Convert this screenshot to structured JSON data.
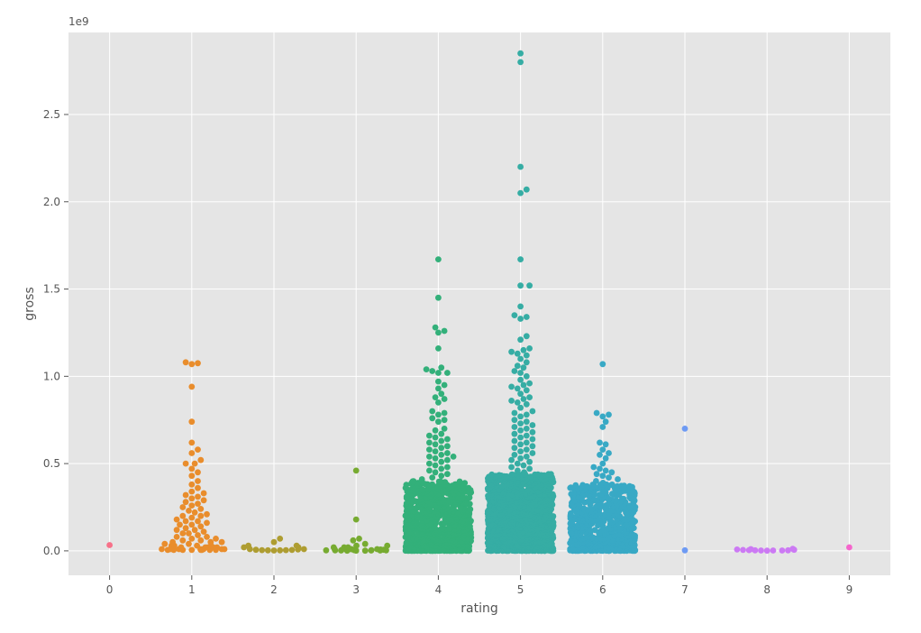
{
  "chart_data": {
    "type": "scatter",
    "style": "swarm",
    "xlabel": "rating",
    "ylabel": "gross",
    "y_offset_label": "1e9",
    "y_scale": 1000000000,
    "ylim": [
      -0.14,
      2.97
    ],
    "xlim": [
      -0.5,
      9.5
    ],
    "grid": true,
    "background": "#e5e5e5",
    "grid_color": "#ffffff",
    "categories": [
      "0",
      "1",
      "2",
      "3",
      "4",
      "5",
      "6",
      "7",
      "8",
      "9"
    ],
    "y_ticks": [
      0.0,
      0.5,
      1.0,
      1.5,
      2.0,
      2.5
    ],
    "y_tick_labels": [
      "0.0",
      "0.5",
      "1.0",
      "1.5",
      "2.0",
      "2.5"
    ],
    "series": [
      {
        "category": "0",
        "color": "#f77189",
        "points": [
          0.033
        ]
      },
      {
        "category": "1",
        "color": "#e98d2c",
        "points": [
          1.08,
          1.075,
          1.07,
          0.94,
          0.74,
          0.62,
          0.58,
          0.56,
          0.52,
          0.5,
          0.5,
          0.47,
          0.45,
          0.43,
          0.4,
          0.38,
          0.36,
          0.34,
          0.33,
          0.32,
          0.31,
          0.3,
          0.29,
          0.28,
          0.27,
          0.26,
          0.25,
          0.24,
          0.23,
          0.22,
          0.21,
          0.2,
          0.2,
          0.19,
          0.18,
          0.17,
          0.17,
          0.16,
          0.15,
          0.15,
          0.14,
          0.13,
          0.12,
          0.12,
          0.11,
          0.1,
          0.1,
          0.09,
          0.08,
          0.08,
          0.07,
          0.07,
          0.06,
          0.06,
          0.05,
          0.05,
          0.05,
          0.04,
          0.04,
          0.03,
          0.03,
          0.03,
          0.03,
          0.02,
          0.02,
          0.02,
          0.02,
          0.02,
          0.01,
          0.01,
          0.01,
          0.01,
          0.01,
          0.01,
          0.01,
          0.01,
          0.005,
          0.005,
          0.005,
          0.005,
          0.005,
          0.005,
          0.005,
          0.005
        ]
      },
      {
        "category": "2",
        "color": "#ae9d31",
        "points": [
          0.07,
          0.05,
          0.03,
          0.03,
          0.02,
          0.02,
          0.01,
          0.01,
          0.008,
          0.006,
          0.005,
          0.004,
          0.004,
          0.003,
          0.003,
          0.002
        ]
      },
      {
        "category": "3",
        "color": "#77ab31",
        "points": [
          0.46,
          0.18,
          0.07,
          0.06,
          0.04,
          0.03,
          0.03,
          0.02,
          0.02,
          0.02,
          0.01,
          0.01,
          0.01,
          0.01,
          0.008,
          0.006,
          0.006,
          0.005,
          0.005,
          0.004,
          0.004,
          0.003,
          0.003,
          0.003,
          0.002,
          0.002,
          0.002,
          0.001,
          0.001,
          0.001
        ]
      },
      {
        "category": "4",
        "color": "#33b07a",
        "count": 1050,
        "points": [
          1.67,
          1.45,
          1.28,
          1.26,
          1.25,
          1.16,
          1.05,
          1.04,
          1.03,
          1.02,
          1.02,
          0.97,
          0.95,
          0.93,
          0.9,
          0.88,
          0.87,
          0.85,
          0.8,
          0.79,
          0.78,
          0.76,
          0.75,
          0.74,
          0.7,
          0.69,
          0.67,
          0.66,
          0.65,
          0.64,
          0.63,
          0.62,
          0.61,
          0.6,
          0.59,
          0.58,
          0.57,
          0.56,
          0.55,
          0.54,
          0.54,
          0.53,
          0.52,
          0.51,
          0.5,
          0.49,
          0.48,
          0.47,
          0.46,
          0.45,
          0.44,
          0.43,
          0.42,
          0.41,
          0.4
        ]
      },
      {
        "category": "5",
        "color": "#36ada4",
        "count": 1500,
        "points": [
          2.85,
          2.8,
          2.2,
          2.07,
          2.05,
          1.67,
          1.52,
          1.52,
          1.4,
          1.35,
          1.34,
          1.33,
          1.23,
          1.21,
          1.16,
          1.15,
          1.14,
          1.13,
          1.12,
          1.1,
          1.08,
          1.06,
          1.05,
          1.03,
          1.02,
          1.0,
          0.98,
          0.96,
          0.95,
          0.94,
          0.93,
          0.92,
          0.9,
          0.88,
          0.87,
          0.86,
          0.85,
          0.84,
          0.82,
          0.8,
          0.79,
          0.78,
          0.77,
          0.75,
          0.74,
          0.73,
          0.72,
          0.71,
          0.7,
          0.69,
          0.68,
          0.67,
          0.66,
          0.65,
          0.64,
          0.63,
          0.62,
          0.61,
          0.6,
          0.59,
          0.58,
          0.57,
          0.56,
          0.55,
          0.54,
          0.53,
          0.52,
          0.51,
          0.5,
          0.49,
          0.48,
          0.47,
          0.46,
          0.45,
          0.44
        ]
      },
      {
        "category": "6",
        "color": "#38a9c5",
        "count": 760,
        "points": [
          1.07,
          0.79,
          0.78,
          0.77,
          0.74,
          0.71,
          0.62,
          0.61,
          0.58,
          0.56,
          0.55,
          0.53,
          0.5,
          0.48,
          0.47,
          0.46,
          0.45,
          0.44,
          0.43,
          0.42,
          0.41,
          0.4,
          0.39,
          0.38
        ]
      },
      {
        "category": "7",
        "color": "#6e9bf4",
        "points": [
          0.7,
          0.003
        ]
      },
      {
        "category": "8",
        "color": "#cc7af4",
        "points": [
          0.012,
          0.01,
          0.008,
          0.006,
          0.005,
          0.004,
          0.003,
          0.003,
          0.002,
          0.002,
          0.002,
          0.001
        ]
      },
      {
        "category": "9",
        "color": "#f565cc",
        "points": [
          0.02
        ]
      }
    ]
  }
}
